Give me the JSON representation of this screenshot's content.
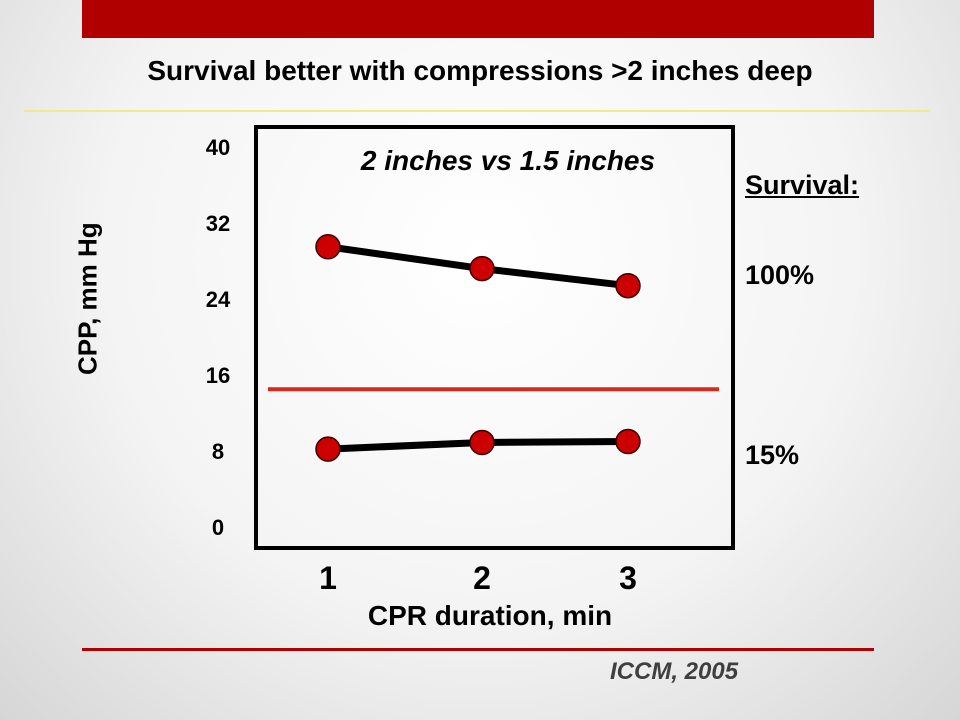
{
  "slide": {
    "title": "Survival better with compressions >2 inches deep",
    "citation": "ICCM, 2005",
    "accent_color": "#b00000",
    "rule_color": "#f2ea8a"
  },
  "survival": {
    "heading": "Survival:",
    "high": "100%",
    "low": "15%"
  },
  "chart_data": {
    "type": "line",
    "title": "2 inches vs 1.5 inches",
    "xlabel": "CPR duration, min",
    "ylabel": "CPP, mm Hg",
    "x": [
      1,
      2,
      3
    ],
    "x_ticks": [
      "1",
      "2",
      "3"
    ],
    "y_ticks": [
      "40",
      "32",
      "24",
      "16",
      "8",
      "0"
    ],
    "ylim": [
      0,
      40
    ],
    "grid": false,
    "series": [
      {
        "values": [
          29.5,
          27.2,
          25.4
        ],
        "color": "#000000",
        "marker_color": "#cc0000"
      },
      {
        "values": [
          8.2,
          8.9,
          9.0
        ],
        "color": "#000000",
        "marker_color": "#cc0000"
      }
    ],
    "reference_line": {
      "y": 14.5,
      "color": "#d42a1f"
    }
  }
}
